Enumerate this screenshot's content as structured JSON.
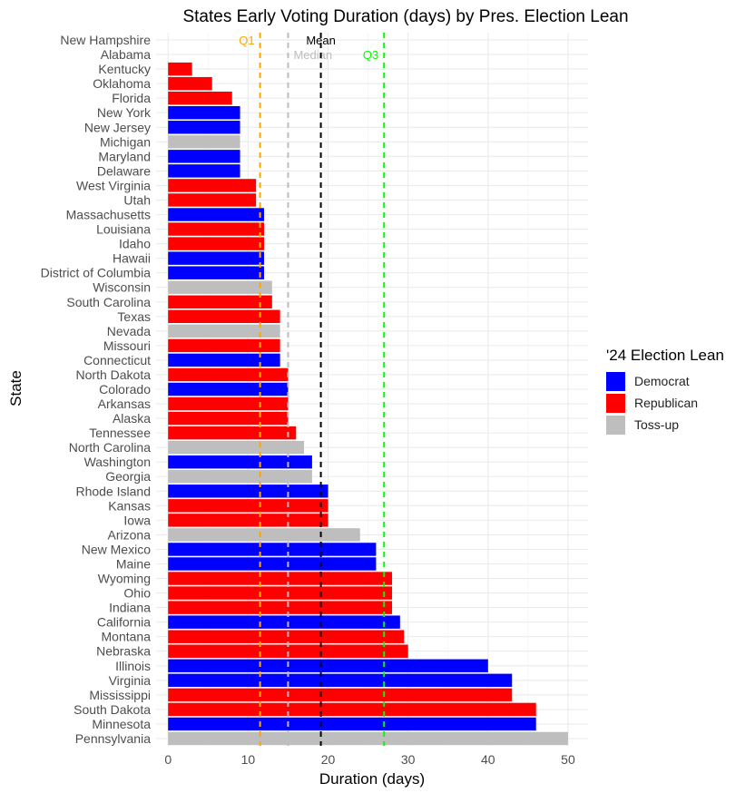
{
  "chart_data": {
    "type": "bar",
    "orientation": "horizontal",
    "title": "States Early Voting Duration (days) by Pres. Election Lean",
    "xlabel": "Duration (days)",
    "ylabel": "State",
    "xlim": [
      -1.5,
      52.5
    ],
    "xticks": [
      0,
      10,
      20,
      30,
      40,
      50
    ],
    "grid": true,
    "legend_position": "right",
    "legend_title": "'24 Election Lean",
    "series_colors": {
      "Democrat": "#0000ff",
      "Republican": "#ff0000",
      "Toss-up": "#bebebe"
    },
    "legend": [
      "Democrat",
      "Republican",
      "Toss-up"
    ],
    "bars": [
      {
        "state": "New Hampshire",
        "value": 0,
        "lean": "Republican"
      },
      {
        "state": "Alabama",
        "value": 0,
        "lean": "Republican"
      },
      {
        "state": "Kentucky",
        "value": 3,
        "lean": "Republican"
      },
      {
        "state": "Oklahoma",
        "value": 5.5,
        "lean": "Republican"
      },
      {
        "state": "Florida",
        "value": 8,
        "lean": "Republican"
      },
      {
        "state": "New York",
        "value": 9,
        "lean": "Democrat"
      },
      {
        "state": "New Jersey",
        "value": 9,
        "lean": "Democrat"
      },
      {
        "state": "Michigan",
        "value": 9,
        "lean": "Toss-up"
      },
      {
        "state": "Maryland",
        "value": 9,
        "lean": "Democrat"
      },
      {
        "state": "Delaware",
        "value": 9,
        "lean": "Democrat"
      },
      {
        "state": "West Virginia",
        "value": 11,
        "lean": "Republican"
      },
      {
        "state": "Utah",
        "value": 11,
        "lean": "Republican"
      },
      {
        "state": "Massachusetts",
        "value": 12,
        "lean": "Democrat"
      },
      {
        "state": "Louisiana",
        "value": 12,
        "lean": "Republican"
      },
      {
        "state": "Idaho",
        "value": 12,
        "lean": "Republican"
      },
      {
        "state": "Hawaii",
        "value": 12,
        "lean": "Democrat"
      },
      {
        "state": "District of Columbia",
        "value": 12,
        "lean": "Democrat"
      },
      {
        "state": "Wisconsin",
        "value": 13,
        "lean": "Toss-up"
      },
      {
        "state": "South Carolina",
        "value": 13,
        "lean": "Republican"
      },
      {
        "state": "Texas",
        "value": 14,
        "lean": "Republican"
      },
      {
        "state": "Nevada",
        "value": 14,
        "lean": "Toss-up"
      },
      {
        "state": "Missouri",
        "value": 14,
        "lean": "Republican"
      },
      {
        "state": "Connecticut",
        "value": 14,
        "lean": "Democrat"
      },
      {
        "state": "North Dakota",
        "value": 15,
        "lean": "Republican"
      },
      {
        "state": "Colorado",
        "value": 15,
        "lean": "Democrat"
      },
      {
        "state": "Arkansas",
        "value": 15,
        "lean": "Republican"
      },
      {
        "state": "Alaska",
        "value": 15,
        "lean": "Republican"
      },
      {
        "state": "Tennessee",
        "value": 16,
        "lean": "Republican"
      },
      {
        "state": "North Carolina",
        "value": 17,
        "lean": "Toss-up"
      },
      {
        "state": "Washington",
        "value": 18,
        "lean": "Democrat"
      },
      {
        "state": "Georgia",
        "value": 18,
        "lean": "Toss-up"
      },
      {
        "state": "Rhode Island",
        "value": 20,
        "lean": "Democrat"
      },
      {
        "state": "Kansas",
        "value": 20,
        "lean": "Republican"
      },
      {
        "state": "Iowa",
        "value": 20,
        "lean": "Republican"
      },
      {
        "state": "Arizona",
        "value": 24,
        "lean": "Toss-up"
      },
      {
        "state": "New Mexico",
        "value": 26,
        "lean": "Democrat"
      },
      {
        "state": "Maine",
        "value": 26,
        "lean": "Democrat"
      },
      {
        "state": "Wyoming",
        "value": 28,
        "lean": "Republican"
      },
      {
        "state": "Ohio",
        "value": 28,
        "lean": "Republican"
      },
      {
        "state": "Indiana",
        "value": 28,
        "lean": "Republican"
      },
      {
        "state": "California",
        "value": 29,
        "lean": "Democrat"
      },
      {
        "state": "Montana",
        "value": 29.5,
        "lean": "Republican"
      },
      {
        "state": "Nebraska",
        "value": 30,
        "lean": "Republican"
      },
      {
        "state": "Illinois",
        "value": 40,
        "lean": "Democrat"
      },
      {
        "state": "Virginia",
        "value": 43,
        "lean": "Democrat"
      },
      {
        "state": "Mississippi",
        "value": 43,
        "lean": "Republican"
      },
      {
        "state": "South Dakota",
        "value": 46,
        "lean": "Republican"
      },
      {
        "state": "Minnesota",
        "value": 46,
        "lean": "Democrat"
      },
      {
        "state": "Pennsylvania",
        "value": 50,
        "lean": "Toss-up"
      }
    ],
    "reference_lines": [
      {
        "label": "Q1",
        "value": 11.5,
        "color": "#ffa500",
        "label_row": 0,
        "anchor": "end"
      },
      {
        "label": "Median",
        "value": 15,
        "color": "#bebebe",
        "label_row": 1,
        "anchor": "start"
      },
      {
        "label": "Mean",
        "value": 19.1,
        "color": "#000000",
        "label_row": 0,
        "anchor": "middle"
      },
      {
        "label": "Q3",
        "value": 27,
        "color": "#00ff00",
        "label_row": 1,
        "anchor": "end"
      }
    ]
  }
}
